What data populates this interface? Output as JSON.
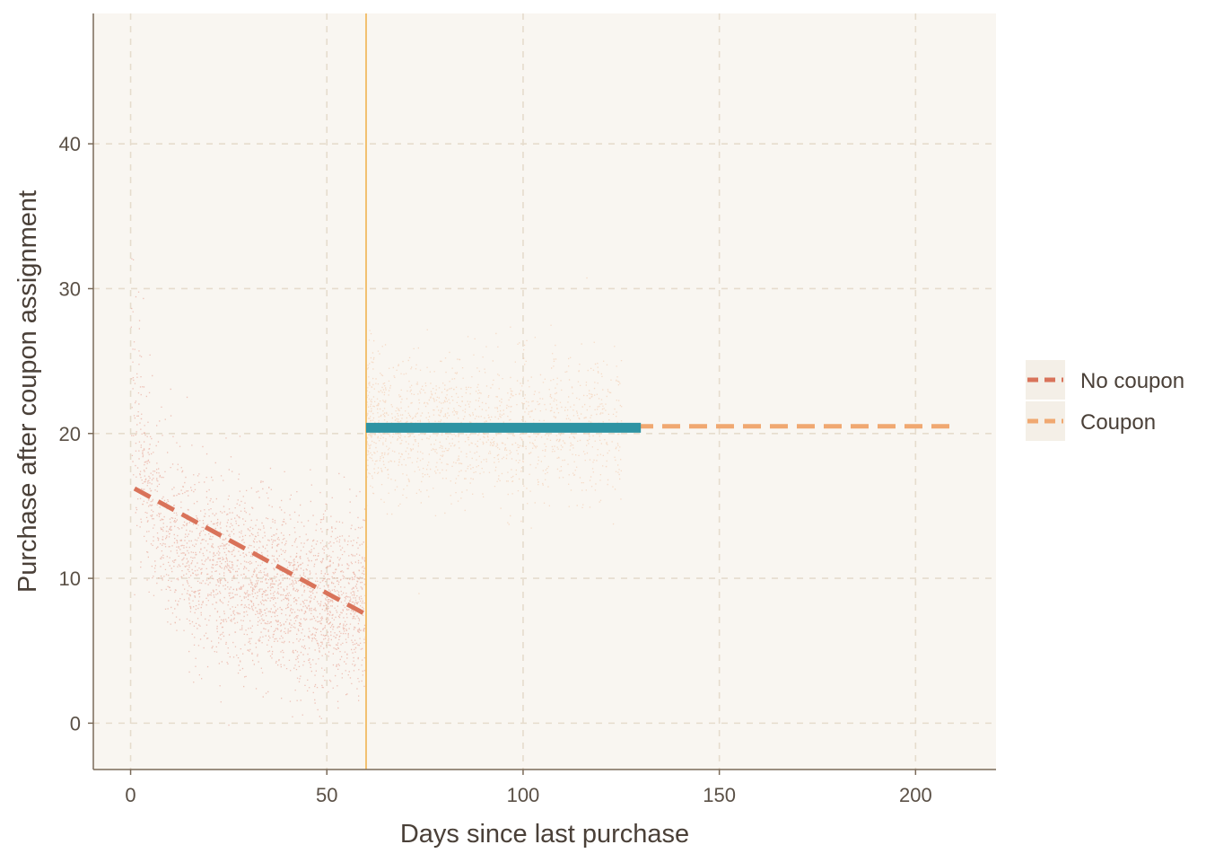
{
  "chart_data": {
    "type": "scatter",
    "title": "",
    "xlabel": "Days since last purchase",
    "ylabel": "Purchase after coupon assignment",
    "xlim": [
      -9.5,
      220.5
    ],
    "ylim": [
      -3.2,
      49
    ],
    "x_ticks": [
      0,
      50,
      100,
      150,
      200
    ],
    "y_ticks": [
      0,
      10,
      20,
      30,
      40
    ],
    "grid": true,
    "cutoff_day": 60,
    "legend_position": "right",
    "legend": [
      {
        "label": "No coupon",
        "color": "#d9735a"
      },
      {
        "label": "Coupon",
        "color": "#f0a871"
      }
    ],
    "series": [
      {
        "name": "No coupon",
        "kind": "dashed-fit",
        "color": "#d9735a",
        "x": [
          1,
          60
        ],
        "y": [
          16.2,
          7.5
        ]
      },
      {
        "name": "Coupon",
        "kind": "dashed-fit",
        "color": "#f0a871",
        "x": [
          60,
          210
        ],
        "y": [
          20.5,
          20.5
        ]
      },
      {
        "kind": "solid-band",
        "color": "#2e93a3",
        "x": [
          60,
          130
        ],
        "y": [
          20.4,
          20.4
        ]
      }
    ],
    "scatter_clouds": [
      {
        "name": "No coupon",
        "color": "#e0826f",
        "x_range": [
          0,
          60
        ],
        "count": 2600
      },
      {
        "name": "Coupon",
        "color": "#f2b48a",
        "x_range": [
          60,
          125
        ],
        "count": 1500
      }
    ],
    "colors": {
      "panel_bg": "#f9f6f1",
      "grid": "#e6dccd",
      "axis": "#7a6a58",
      "cutoff": "#f2c070"
    }
  }
}
